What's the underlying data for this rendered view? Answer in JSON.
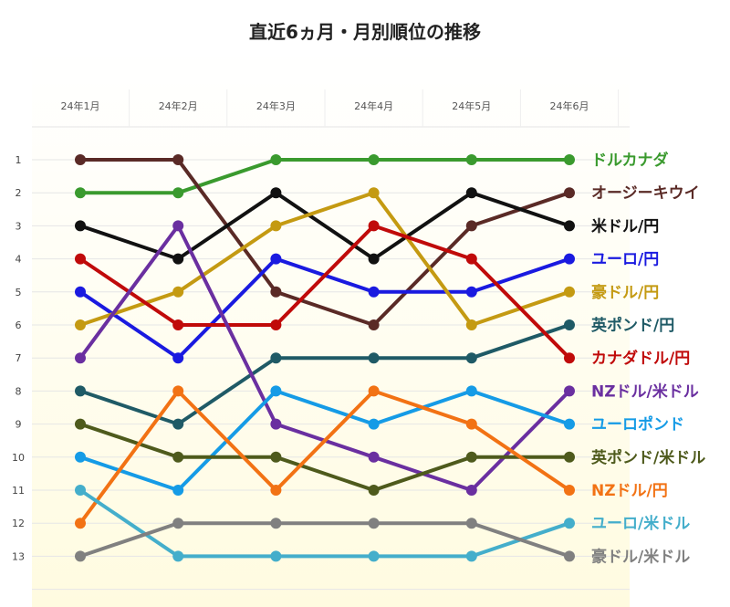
{
  "chart_data": {
    "type": "line",
    "title": "直近6ヵ月・月別順位の推移",
    "categories": [
      "24年1月",
      "24年2月",
      "24年3月",
      "24年4月",
      "24年5月",
      "24年6月"
    ],
    "yticks": [
      1,
      2,
      3,
      4,
      5,
      6,
      7,
      8,
      9,
      10,
      11,
      12,
      13
    ],
    "ylim": [
      1,
      13
    ],
    "y_inverted": true,
    "grid": true,
    "legend_placement": "right, at line ends",
    "series": [
      {
        "name": "ドルカナダ",
        "color": "#3a9a2e",
        "values": [
          2,
          2,
          1,
          1,
          1,
          1
        ]
      },
      {
        "name": "オージーキウイ",
        "color": "#5a2a26",
        "values": [
          1,
          1,
          5,
          6,
          3,
          2
        ]
      },
      {
        "name": "米ドル/円",
        "color": "#111111",
        "values": [
          3,
          4,
          2,
          4,
          2,
          3
        ]
      },
      {
        "name": "ユーロ/円",
        "color": "#1a1ae0",
        "values": [
          5,
          7,
          4,
          5,
          5,
          4
        ]
      },
      {
        "name": "豪ドル/円",
        "color": "#c49a12",
        "values": [
          6,
          5,
          3,
          2,
          6,
          5
        ]
      },
      {
        "name": "英ポンド/円",
        "color": "#1f5a66",
        "values": [
          8,
          9,
          7,
          7,
          7,
          6
        ]
      },
      {
        "name": "カナダドル/円",
        "color": "#c00a0a",
        "values": [
          4,
          6,
          6,
          3,
          4,
          7
        ]
      },
      {
        "name": "NZドル/米ドル",
        "color": "#6a2fa0",
        "values": [
          7,
          3,
          9,
          10,
          11,
          8
        ]
      },
      {
        "name": "ユーロポンド",
        "color": "#159be6",
        "values": [
          10,
          11,
          8,
          9,
          8,
          9
        ]
      },
      {
        "name": "英ポンド/米ドル",
        "color": "#4e5a1c",
        "values": [
          9,
          10,
          10,
          11,
          10,
          10
        ]
      },
      {
        "name": "NZドル/円",
        "color": "#f27214",
        "values": [
          12,
          8,
          11,
          8,
          9,
          11
        ]
      },
      {
        "name": "ユーロ/米ドル",
        "color": "#44aecb",
        "values": [
          11,
          13,
          13,
          13,
          13,
          12
        ]
      },
      {
        "name": "豪ドル/米ドル",
        "color": "#808080",
        "values": [
          13,
          12,
          12,
          12,
          12,
          13
        ]
      }
    ]
  }
}
